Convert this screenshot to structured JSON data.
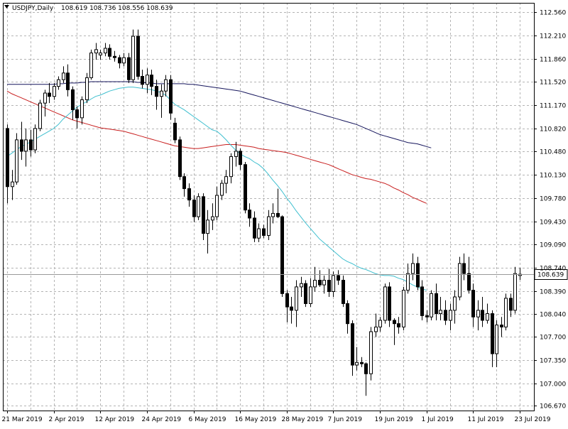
{
  "header": {
    "symbol": "USDJPY,Daily",
    "ohlc": "108.619 108.736 108.556 108.639",
    "icon": "triangle-down-icon"
  },
  "colors": {
    "background": "#ffffff",
    "grid": "#b4b4b4",
    "candle_outline": "#000000",
    "bull_fill": "#ffffff",
    "bear_fill": "#000000",
    "ma_fast": "#3fbfcf",
    "ma_mid": "#c81e1e",
    "ma_slow": "#15155c",
    "price_line": "#9a9a9a",
    "price_badge_bg": "#ffffff"
  },
  "chart_data": {
    "type": "candlestick",
    "grid": true,
    "y_labels": [
      "112.560",
      "112.210",
      "111.860",
      "111.520",
      "111.170",
      "110.820",
      "110.480",
      "110.130",
      "109.780",
      "109.430",
      "109.090",
      "108.740",
      "108.390",
      "108.040",
      "107.700",
      "107.350",
      "107.000",
      "106.670"
    ],
    "x_labels": [
      "21 Mar 2019",
      "2 Apr 2019",
      "12 Apr 2019",
      "24 Apr 2019",
      "6 May 2019",
      "16 May 2019",
      "28 May 2019",
      "7 Jun 2019",
      "19 Jun 2019",
      "1 Jul 2019",
      "11 Jul 2019",
      "23 Jul 2019"
    ],
    "x_label_candle_index": [
      0,
      10,
      20,
      30,
      40,
      50,
      60,
      70,
      80,
      90,
      100,
      110
    ],
    "ylim": [
      106.6,
      112.7
    ],
    "current_price": "108.639",
    "candles": [
      {
        "o": 110.82,
        "h": 110.88,
        "l": 109.7,
        "c": 109.95
      },
      {
        "o": 109.95,
        "h": 110.2,
        "l": 109.75,
        "c": 110.02
      },
      {
        "o": 110.02,
        "h": 110.75,
        "l": 109.98,
        "c": 110.65
      },
      {
        "o": 110.65,
        "h": 110.92,
        "l": 110.35,
        "c": 110.48
      },
      {
        "o": 110.48,
        "h": 110.82,
        "l": 110.25,
        "c": 110.65
      },
      {
        "o": 110.65,
        "h": 110.8,
        "l": 110.4,
        "c": 110.5
      },
      {
        "o": 110.5,
        "h": 110.88,
        "l": 110.45,
        "c": 110.82
      },
      {
        "o": 110.82,
        "h": 111.25,
        "l": 110.78,
        "c": 111.2
      },
      {
        "o": 111.2,
        "h": 111.4,
        "l": 111.0,
        "c": 111.35
      },
      {
        "o": 111.35,
        "h": 111.5,
        "l": 111.2,
        "c": 111.3
      },
      {
        "o": 111.3,
        "h": 111.5,
        "l": 111.25,
        "c": 111.45
      },
      {
        "o": 111.45,
        "h": 111.6,
        "l": 111.4,
        "c": 111.55
      },
      {
        "o": 111.55,
        "h": 111.75,
        "l": 111.5,
        "c": 111.65
      },
      {
        "o": 111.65,
        "h": 111.78,
        "l": 111.3,
        "c": 111.4
      },
      {
        "o": 111.4,
        "h": 111.45,
        "l": 110.95,
        "c": 111.1
      },
      {
        "o": 111.1,
        "h": 111.15,
        "l": 110.82,
        "c": 110.98
      },
      {
        "o": 110.98,
        "h": 111.3,
        "l": 110.88,
        "c": 111.25
      },
      {
        "o": 111.25,
        "h": 111.65,
        "l": 111.2,
        "c": 111.58
      },
      {
        "o": 111.58,
        "h": 112.0,
        "l": 111.55,
        "c": 111.95
      },
      {
        "o": 111.95,
        "h": 112.1,
        "l": 111.85,
        "c": 112.0
      },
      {
        "o": 111.92,
        "h": 112.0,
        "l": 111.85,
        "c": 111.95
      },
      {
        "o": 111.95,
        "h": 112.1,
        "l": 111.9,
        "c": 112.02
      },
      {
        "o": 112.02,
        "h": 112.08,
        "l": 111.85,
        "c": 111.9
      },
      {
        "o": 111.9,
        "h": 111.98,
        "l": 111.82,
        "c": 111.88
      },
      {
        "o": 111.88,
        "h": 111.92,
        "l": 111.72,
        "c": 111.8
      },
      {
        "o": 111.8,
        "h": 111.95,
        "l": 111.75,
        "c": 111.88
      },
      {
        "o": 111.88,
        "h": 111.95,
        "l": 111.5,
        "c": 111.55
      },
      {
        "o": 111.55,
        "h": 112.3,
        "l": 111.5,
        "c": 112.2
      },
      {
        "o": 112.2,
        "h": 112.3,
        "l": 111.55,
        "c": 111.6
      },
      {
        "o": 111.6,
        "h": 111.7,
        "l": 111.42,
        "c": 111.48
      },
      {
        "o": 111.48,
        "h": 111.72,
        "l": 111.35,
        "c": 111.62
      },
      {
        "o": 111.62,
        "h": 111.7,
        "l": 111.32,
        "c": 111.45
      },
      {
        "o": 111.45,
        "h": 111.55,
        "l": 111.1,
        "c": 111.3
      },
      {
        "o": 111.3,
        "h": 111.48,
        "l": 110.98,
        "c": 111.38
      },
      {
        "o": 111.38,
        "h": 111.62,
        "l": 111.3,
        "c": 111.55
      },
      {
        "o": 111.55,
        "h": 111.62,
        "l": 110.95,
        "c": 111.05
      },
      {
        "o": 110.9,
        "h": 110.98,
        "l": 110.6,
        "c": 110.65
      },
      {
        "o": 110.65,
        "h": 110.7,
        "l": 110.05,
        "c": 110.1
      },
      {
        "o": 110.1,
        "h": 110.15,
        "l": 109.8,
        "c": 109.92
      },
      {
        "o": 109.92,
        "h": 110.0,
        "l": 109.65,
        "c": 109.75
      },
      {
        "o": 109.75,
        "h": 109.82,
        "l": 109.42,
        "c": 109.5
      },
      {
        "o": 109.5,
        "h": 109.85,
        "l": 109.45,
        "c": 109.8
      },
      {
        "o": 109.8,
        "h": 109.85,
        "l": 109.15,
        "c": 109.25
      },
      {
        "o": 109.25,
        "h": 109.6,
        "l": 108.95,
        "c": 109.45
      },
      {
        "o": 109.45,
        "h": 109.7,
        "l": 109.3,
        "c": 109.5
      },
      {
        "o": 109.5,
        "h": 109.95,
        "l": 109.45,
        "c": 109.82
      },
      {
        "o": 109.82,
        "h": 110.05,
        "l": 109.75,
        "c": 110.0
      },
      {
        "o": 110.0,
        "h": 110.2,
        "l": 109.85,
        "c": 110.1
      },
      {
        "o": 110.1,
        "h": 110.45,
        "l": 110.0,
        "c": 110.4
      },
      {
        "o": 110.4,
        "h": 110.62,
        "l": 110.25,
        "c": 110.48
      },
      {
        "o": 110.48,
        "h": 110.52,
        "l": 110.2,
        "c": 110.28
      },
      {
        "o": 110.28,
        "h": 110.32,
        "l": 109.55,
        "c": 109.6
      },
      {
        "o": 109.6,
        "h": 109.7,
        "l": 109.35,
        "c": 109.48
      },
      {
        "o": 109.48,
        "h": 109.58,
        "l": 109.12,
        "c": 109.18
      },
      {
        "o": 109.18,
        "h": 109.4,
        "l": 109.12,
        "c": 109.32
      },
      {
        "o": 109.32,
        "h": 109.38,
        "l": 109.18,
        "c": 109.22
      },
      {
        "o": 109.22,
        "h": 109.6,
        "l": 109.15,
        "c": 109.5
      },
      {
        "o": 109.5,
        "h": 109.7,
        "l": 109.4,
        "c": 109.55
      },
      {
        "o": 109.55,
        "h": 109.92,
        "l": 109.48,
        "c": 109.5
      },
      {
        "o": 109.5,
        "h": 109.52,
        "l": 108.3,
        "c": 108.35
      },
      {
        "o": 108.35,
        "h": 108.4,
        "l": 107.92,
        "c": 108.15
      },
      {
        "o": 108.15,
        "h": 108.3,
        "l": 107.9,
        "c": 108.1
      },
      {
        "o": 108.1,
        "h": 108.55,
        "l": 107.85,
        "c": 108.45
      },
      {
        "o": 108.45,
        "h": 108.6,
        "l": 108.3,
        "c": 108.5
      },
      {
        "o": 108.5,
        "h": 108.55,
        "l": 108.15,
        "c": 108.2
      },
      {
        "o": 108.2,
        "h": 108.58,
        "l": 108.15,
        "c": 108.45
      },
      {
        "o": 108.45,
        "h": 108.75,
        "l": 108.38,
        "c": 108.55
      },
      {
        "o": 108.55,
        "h": 108.7,
        "l": 108.45,
        "c": 108.48
      },
      {
        "o": 108.48,
        "h": 108.62,
        "l": 108.35,
        "c": 108.55
      },
      {
        "o": 108.55,
        "h": 108.72,
        "l": 108.3,
        "c": 108.38
      },
      {
        "o": 108.38,
        "h": 108.68,
        "l": 108.3,
        "c": 108.62
      },
      {
        "o": 108.62,
        "h": 108.7,
        "l": 108.48,
        "c": 108.55
      },
      {
        "o": 108.55,
        "h": 108.62,
        "l": 108.15,
        "c": 108.2
      },
      {
        "o": 108.2,
        "h": 108.25,
        "l": 107.75,
        "c": 107.9
      },
      {
        "o": 107.9,
        "h": 107.95,
        "l": 107.12,
        "c": 107.28
      },
      {
        "o": 107.28,
        "h": 107.55,
        "l": 107.2,
        "c": 107.32
      },
      {
        "o": 107.32,
        "h": 107.4,
        "l": 107.25,
        "c": 107.3
      },
      {
        "o": 107.3,
        "h": 107.32,
        "l": 106.82,
        "c": 107.15
      },
      {
        "o": 107.15,
        "h": 107.85,
        "l": 107.05,
        "c": 107.78
      },
      {
        "o": 107.78,
        "h": 108.05,
        "l": 107.7,
        "c": 107.85
      },
      {
        "o": 107.85,
        "h": 108.0,
        "l": 107.78,
        "c": 107.95
      },
      {
        "o": 107.95,
        "h": 108.5,
        "l": 107.9,
        "c": 108.45
      },
      {
        "o": 108.45,
        "h": 108.52,
        "l": 107.85,
        "c": 107.95
      },
      {
        "o": 107.95,
        "h": 107.98,
        "l": 107.58,
        "c": 107.9
      },
      {
        "o": 107.9,
        "h": 108.0,
        "l": 107.75,
        "c": 107.85
      },
      {
        "o": 107.85,
        "h": 108.45,
        "l": 107.8,
        "c": 108.4
      },
      {
        "o": 108.4,
        "h": 108.8,
        "l": 108.35,
        "c": 108.65
      },
      {
        "o": 108.65,
        "h": 108.95,
        "l": 108.55,
        "c": 108.8
      },
      {
        "o": 108.8,
        "h": 108.9,
        "l": 108.4,
        "c": 108.45
      },
      {
        "o": 108.45,
        "h": 108.55,
        "l": 107.95,
        "c": 108.02
      },
      {
        "o": 108.02,
        "h": 108.1,
        "l": 107.92,
        "c": 108.0
      },
      {
        "o": 108.0,
        "h": 108.4,
        "l": 107.95,
        "c": 108.35
      },
      {
        "o": 108.35,
        "h": 108.5,
        "l": 107.95,
        "c": 108.05
      },
      {
        "o": 108.05,
        "h": 108.3,
        "l": 107.95,
        "c": 108.1
      },
      {
        "o": 108.1,
        "h": 108.25,
        "l": 107.88,
        "c": 107.95
      },
      {
        "o": 107.95,
        "h": 108.2,
        "l": 107.8,
        "c": 108.1
      },
      {
        "o": 108.1,
        "h": 108.4,
        "l": 107.9,
        "c": 108.3
      },
      {
        "o": 108.3,
        "h": 108.9,
        "l": 108.25,
        "c": 108.8
      },
      {
        "o": 108.8,
        "h": 108.95,
        "l": 108.55,
        "c": 108.65
      },
      {
        "o": 108.65,
        "h": 108.9,
        "l": 108.35,
        "c": 108.4
      },
      {
        "o": 108.4,
        "h": 108.5,
        "l": 107.85,
        "c": 108.0
      },
      {
        "o": 108.0,
        "h": 108.25,
        "l": 107.8,
        "c": 108.1
      },
      {
        "o": 108.1,
        "h": 108.3,
        "l": 107.85,
        "c": 107.95
      },
      {
        "o": 107.95,
        "h": 108.2,
        "l": 107.9,
        "c": 108.05
      },
      {
        "o": 108.05,
        "h": 108.1,
        "l": 107.25,
        "c": 107.45
      },
      {
        "o": 107.45,
        "h": 107.95,
        "l": 107.25,
        "c": 107.88
      },
      {
        "o": 107.88,
        "h": 108.0,
        "l": 107.7,
        "c": 107.85
      },
      {
        "o": 107.85,
        "h": 108.35,
        "l": 107.8,
        "c": 108.28
      },
      {
        "o": 108.28,
        "h": 108.35,
        "l": 108.0,
        "c": 108.1
      },
      {
        "o": 108.1,
        "h": 108.75,
        "l": 108.05,
        "c": 108.65
      },
      {
        "o": 108.62,
        "h": 108.736,
        "l": 108.556,
        "c": 108.639
      }
    ],
    "ma_fast": [
      110.4,
      110.45,
      110.5,
      110.55,
      110.58,
      110.62,
      110.66,
      110.7,
      110.74,
      110.78,
      110.82,
      110.88,
      110.96,
      111.02,
      111.08,
      111.14,
      111.18,
      111.22,
      111.26,
      111.3,
      111.32,
      111.35,
      111.38,
      111.4,
      111.42,
      111.43,
      111.44,
      111.44,
      111.43,
      111.42,
      111.41,
      111.4,
      111.38,
      111.36,
      111.32,
      111.25,
      111.18,
      111.14,
      111.1,
      111.05,
      111.0,
      110.95,
      110.9,
      110.85,
      110.8,
      110.78,
      110.72,
      110.65,
      110.57,
      110.5,
      110.44,
      110.4,
      110.37,
      110.32,
      110.28,
      110.22,
      110.14,
      110.05,
      109.97,
      109.88,
      109.78,
      109.69,
      109.59,
      109.5,
      109.41,
      109.33,
      109.25,
      109.17,
      109.11,
      109.05,
      108.99,
      108.93,
      108.87,
      108.83,
      108.8,
      108.76,
      108.73,
      108.71,
      108.68,
      108.65,
      108.63,
      108.62,
      108.62,
      108.61,
      108.58,
      108.56,
      108.52,
      108.48,
      108.45,
      108.42,
      108.4
    ],
    "ma_fast_start_index": 0,
    "ma_mid": [
      111.38,
      111.34,
      111.31,
      111.28,
      111.25,
      111.22,
      111.19,
      111.16,
      111.13,
      111.1,
      111.07,
      111.04,
      111.01,
      110.98,
      110.95,
      110.93,
      110.91,
      110.89,
      110.87,
      110.85,
      110.83,
      110.82,
      110.81,
      110.8,
      110.79,
      110.78,
      110.76,
      110.74,
      110.72,
      110.7,
      110.68,
      110.66,
      110.64,
      110.62,
      110.6,
      110.58,
      110.56,
      110.55,
      110.54,
      110.53,
      110.52,
      110.52,
      110.53,
      110.54,
      110.55,
      110.56,
      110.57,
      110.58,
      110.58,
      110.58,
      110.57,
      110.56,
      110.55,
      110.54,
      110.52,
      110.51,
      110.5,
      110.49,
      110.48,
      110.47,
      110.46,
      110.44,
      110.42,
      110.4,
      110.38,
      110.36,
      110.34,
      110.32,
      110.3,
      110.28,
      110.25,
      110.22,
      110.19,
      110.16,
      110.13,
      110.11,
      110.09,
      110.07,
      110.06,
      110.04,
      110.02,
      110.0,
      109.97,
      109.93,
      109.9,
      109.86,
      109.83,
      109.79,
      109.76,
      109.73,
      109.7
    ],
    "ma_slow": [
      111.48,
      111.48,
      111.48,
      111.48,
      111.48,
      111.48,
      111.48,
      111.48,
      111.48,
      111.48,
      111.48,
      111.49,
      111.49,
      111.5,
      111.5,
      111.5,
      111.51,
      111.51,
      111.52,
      111.52,
      111.52,
      111.52,
      111.52,
      111.52,
      111.52,
      111.52,
      111.52,
      111.52,
      111.51,
      111.51,
      111.5,
      111.5,
      111.49,
      111.49,
      111.49,
      111.49,
      111.49,
      111.49,
      111.49,
      111.48,
      111.48,
      111.47,
      111.46,
      111.45,
      111.44,
      111.43,
      111.42,
      111.41,
      111.4,
      111.39,
      111.38,
      111.36,
      111.34,
      111.32,
      111.3,
      111.28,
      111.26,
      111.24,
      111.22,
      111.2,
      111.18,
      111.16,
      111.14,
      111.12,
      111.1,
      111.08,
      111.06,
      111.04,
      111.02,
      111.0,
      110.98,
      110.96,
      110.94,
      110.92,
      110.9,
      110.88,
      110.85,
      110.82,
      110.79,
      110.76,
      110.73,
      110.71,
      110.69,
      110.67,
      110.65,
      110.63,
      110.61,
      110.6,
      110.59,
      110.57,
      110.55,
      110.53
    ]
  }
}
